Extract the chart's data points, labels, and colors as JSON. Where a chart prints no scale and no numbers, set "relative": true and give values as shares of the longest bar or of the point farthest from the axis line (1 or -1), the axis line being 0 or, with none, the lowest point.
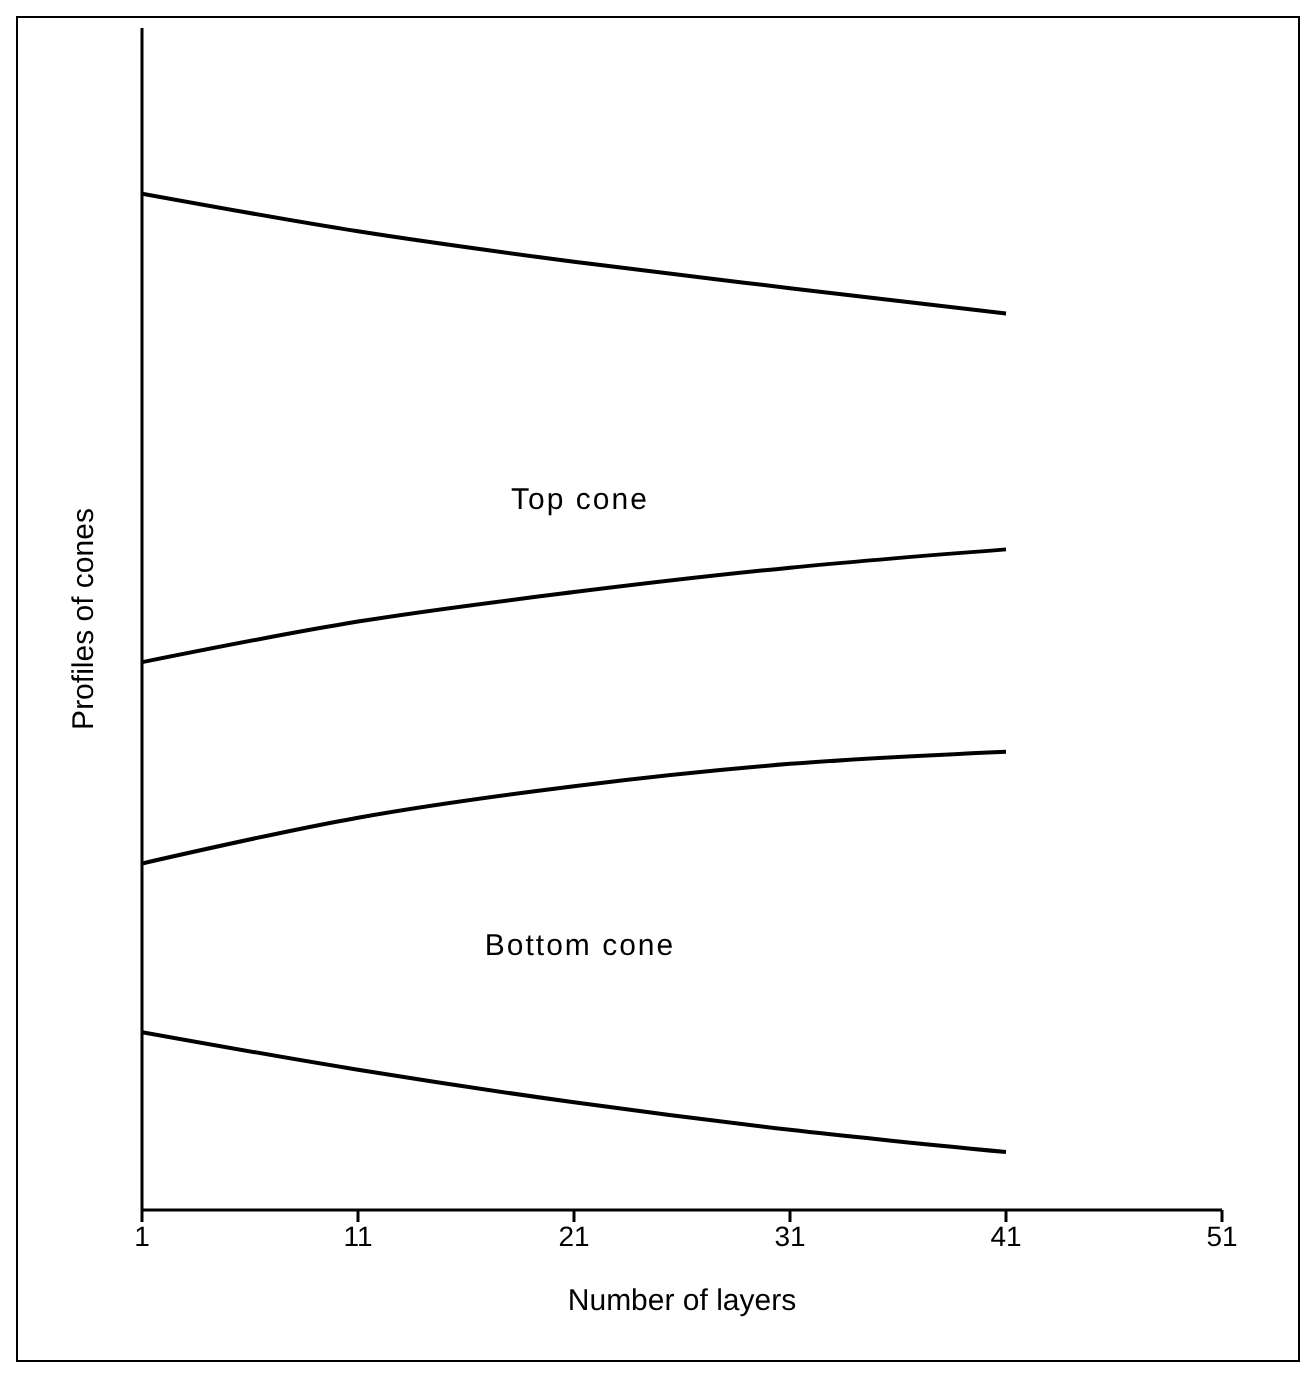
{
  "chart_data": {
    "type": "line",
    "relative": true,
    "xlabel": "Number of layers",
    "ylabel": "Profiles of cones",
    "x": [
      1,
      11,
      21,
      31,
      41
    ],
    "xlim": [
      1,
      51
    ],
    "xticks": [
      1,
      11,
      21,
      31,
      41,
      51
    ],
    "series": [
      {
        "color": "#000000",
        "values": [
          1,
          0.963,
          0.933,
          0.907,
          0.882
        ]
      },
      {
        "color": "#000000",
        "values": [
          0.539,
          0.579,
          0.608,
          0.632,
          0.65
        ]
      },
      {
        "color": "#000000",
        "values": [
          0.341,
          0.386,
          0.417,
          0.439,
          0.451
        ]
      },
      {
        "color": "#000000",
        "values": [
          0.175,
          0.138,
          0.106,
          0.079,
          0.057
        ]
      }
    ],
    "annotations": [
      "Top cone",
      "Bottom cone"
    ],
    "grid": false,
    "marker": "none",
    "line_style": "solid"
  }
}
